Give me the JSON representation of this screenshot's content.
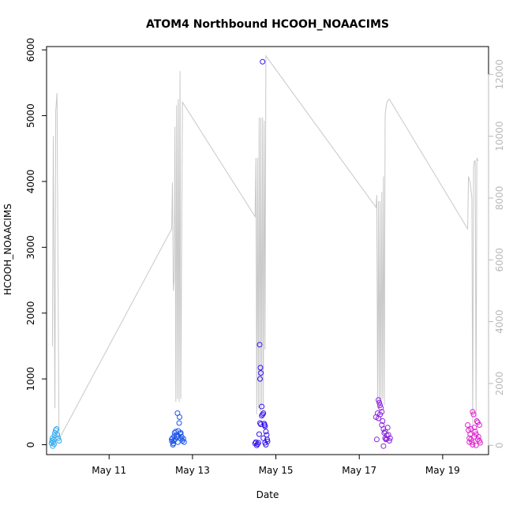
{
  "chart_data": {
    "type": "scatter",
    "title": "ATOM4 Northbound HCOOH_NOAACIMS",
    "xlabel": "Date",
    "ylabel": "HCOOH_NOAACIMS",
    "xlim": [
      9.5,
      20.1
    ],
    "ylim": [
      -150,
      6050
    ],
    "y2lim": [
      -300,
      12900
    ],
    "x_ticks": [
      11,
      13,
      15,
      17,
      19
    ],
    "x_tick_labels": [
      "May 11",
      "May 13",
      "May 15",
      "May 17",
      "May 19"
    ],
    "y_ticks": [
      0,
      1000,
      2000,
      3000,
      4000,
      5000,
      6000
    ],
    "y_tick_labels": [
      "0",
      "1000",
      "2000",
      "3000",
      "4000",
      "5000",
      "6000"
    ],
    "y2_ticks": [
      0,
      2000,
      4000,
      6000,
      8000,
      10000,
      12000
    ],
    "y2_tick_labels": [
      "0",
      "2000",
      "4000",
      "6000",
      "8000",
      "10000",
      "12000"
    ],
    "grid": false,
    "legend": "none",
    "colors": {
      "altitude_line": "#c8c8c8",
      "flight_1": "#33aaee",
      "flight_2": "#1a55e8",
      "flight_3": "#3311ee",
      "flight_4": "#8a22dd",
      "flight_5": "#dd22cc"
    },
    "altitude_line": [
      [
        9.64,
        3200
      ],
      [
        9.66,
        10000
      ],
      [
        9.7,
        1200
      ],
      [
        9.72,
        10800
      ],
      [
        9.75,
        11400
      ],
      [
        9.8,
        200
      ],
      [
        12.5,
        7000
      ],
      [
        12.52,
        8500
      ],
      [
        12.54,
        5000
      ],
      [
        12.56,
        5400
      ],
      [
        12.58,
        10300
      ],
      [
        12.6,
        1400
      ],
      [
        12.62,
        11000
      ],
      [
        12.64,
        1500
      ],
      [
        12.66,
        11200
      ],
      [
        12.68,
        1400
      ],
      [
        12.7,
        12100
      ],
      [
        12.72,
        1500
      ],
      [
        12.76,
        11100
      ],
      [
        14.5,
        7400
      ],
      [
        14.52,
        9300
      ],
      [
        14.54,
        1000
      ],
      [
        14.56,
        9300
      ],
      [
        14.58,
        1200
      ],
      [
        14.6,
        10600
      ],
      [
        14.62,
        1100
      ],
      [
        14.64,
        10600
      ],
      [
        14.66,
        1200
      ],
      [
        14.68,
        10600
      ],
      [
        14.7,
        1300
      ],
      [
        14.72,
        10500
      ],
      [
        14.74,
        3100
      ],
      [
        14.76,
        12600
      ],
      [
        17.4,
        7700
      ],
      [
        17.42,
        8100
      ],
      [
        17.44,
        1200
      ],
      [
        17.46,
        7900
      ],
      [
        17.48,
        1300
      ],
      [
        17.5,
        7900
      ],
      [
        17.52,
        1300
      ],
      [
        17.54,
        8200
      ],
      [
        17.56,
        1500
      ],
      [
        17.58,
        8700
      ],
      [
        17.6,
        1300
      ],
      [
        17.62,
        10700
      ],
      [
        17.66,
        11100
      ],
      [
        17.72,
        11200
      ],
      [
        19.6,
        7000
      ],
      [
        19.62,
        8700
      ],
      [
        19.66,
        8500
      ],
      [
        19.7,
        8000
      ],
      [
        19.72,
        600
      ],
      [
        19.74,
        9000
      ],
      [
        19.76,
        9200
      ],
      [
        19.78,
        9200
      ],
      [
        19.8,
        800
      ],
      [
        19.82,
        9300
      ],
      [
        19.85,
        9200
      ]
    ],
    "series": [
      {
        "values": [
          [
            9.62,
            20
          ],
          [
            9.63,
            60
          ],
          [
            9.64,
            100
          ],
          [
            9.65,
            -20
          ],
          [
            9.66,
            40
          ],
          [
            9.67,
            80
          ],
          [
            9.68,
            10
          ],
          [
            9.69,
            140
          ],
          [
            9.7,
            180
          ],
          [
            9.72,
            220
          ],
          [
            9.74,
            240
          ],
          [
            9.76,
            150
          ],
          [
            9.78,
            100
          ],
          [
            9.8,
            60
          ]
        ]
      },
      {
        "values": [
          [
            12.5,
            80
          ],
          [
            12.51,
            50
          ],
          [
            12.52,
            100
          ],
          [
            12.53,
            0
          ],
          [
            12.54,
            20
          ],
          [
            12.55,
            60
          ],
          [
            12.56,
            130
          ],
          [
            12.57,
            180
          ],
          [
            12.58,
            80
          ],
          [
            12.6,
            200
          ],
          [
            12.62,
            150
          ],
          [
            12.64,
            480
          ],
          [
            12.65,
            40
          ],
          [
            12.66,
            130
          ],
          [
            12.68,
            330
          ],
          [
            12.69,
            420
          ],
          [
            12.7,
            170
          ],
          [
            12.72,
            90
          ],
          [
            12.74,
            120
          ],
          [
            12.76,
            60
          ],
          [
            12.78,
            90
          ],
          [
            12.8,
            40
          ],
          [
            12.62,
            120
          ],
          [
            12.66,
            210
          ],
          [
            12.72,
            180
          ]
        ]
      },
      {
        "values": [
          [
            14.5,
            20
          ],
          [
            14.52,
            40
          ],
          [
            14.54,
            -10
          ],
          [
            14.56,
            10
          ],
          [
            14.58,
            30
          ],
          [
            14.6,
            160
          ],
          [
            14.61,
            1520
          ],
          [
            14.62,
            1000
          ],
          [
            14.63,
            1170
          ],
          [
            14.64,
            1090
          ],
          [
            14.66,
            580
          ],
          [
            14.68,
            460
          ],
          [
            14.7,
            480
          ],
          [
            14.72,
            320
          ],
          [
            14.73,
            300
          ],
          [
            14.74,
            280
          ],
          [
            14.76,
            200
          ],
          [
            14.78,
            150
          ],
          [
            14.79,
            80
          ],
          [
            14.8,
            50
          ],
          [
            14.62,
            330
          ],
          [
            14.64,
            310
          ],
          [
            14.66,
            440
          ],
          [
            14.7,
            100
          ],
          [
            14.74,
            30
          ],
          [
            14.76,
            0
          ],
          [
            14.68,
            5820
          ]
        ]
      },
      {
        "values": [
          [
            17.4,
            420
          ],
          [
            17.42,
            80
          ],
          [
            17.44,
            480
          ],
          [
            17.46,
            680
          ],
          [
            17.48,
            640
          ],
          [
            17.5,
            600
          ],
          [
            17.52,
            560
          ],
          [
            17.54,
            500
          ],
          [
            17.56,
            360
          ],
          [
            17.58,
            240
          ],
          [
            17.6,
            180
          ],
          [
            17.62,
            100
          ],
          [
            17.64,
            80
          ],
          [
            17.66,
            140
          ],
          [
            17.68,
            260
          ],
          [
            17.7,
            150
          ],
          [
            17.72,
            60
          ],
          [
            17.74,
            100
          ],
          [
            17.46,
            400
          ],
          [
            17.5,
            460
          ],
          [
            17.54,
            300
          ],
          [
            17.58,
            -20
          ],
          [
            17.62,
            200
          ],
          [
            17.66,
            90
          ]
        ]
      },
      {
        "values": [
          [
            19.6,
            300
          ],
          [
            19.62,
            220
          ],
          [
            19.64,
            100
          ],
          [
            19.66,
            160
          ],
          [
            19.68,
            80
          ],
          [
            19.7,
            40
          ],
          [
            19.72,
            500
          ],
          [
            19.74,
            460
          ],
          [
            19.76,
            260
          ],
          [
            19.78,
            200
          ],
          [
            19.8,
            160
          ],
          [
            19.82,
            360
          ],
          [
            19.84,
            340
          ],
          [
            19.86,
            120
          ],
          [
            19.88,
            60
          ],
          [
            19.9,
            30
          ],
          [
            19.64,
            40
          ],
          [
            19.68,
            240
          ],
          [
            19.72,
            0
          ],
          [
            19.76,
            120
          ],
          [
            19.8,
            -10
          ],
          [
            19.84,
            80
          ],
          [
            19.88,
            300
          ]
        ]
      }
    ]
  }
}
